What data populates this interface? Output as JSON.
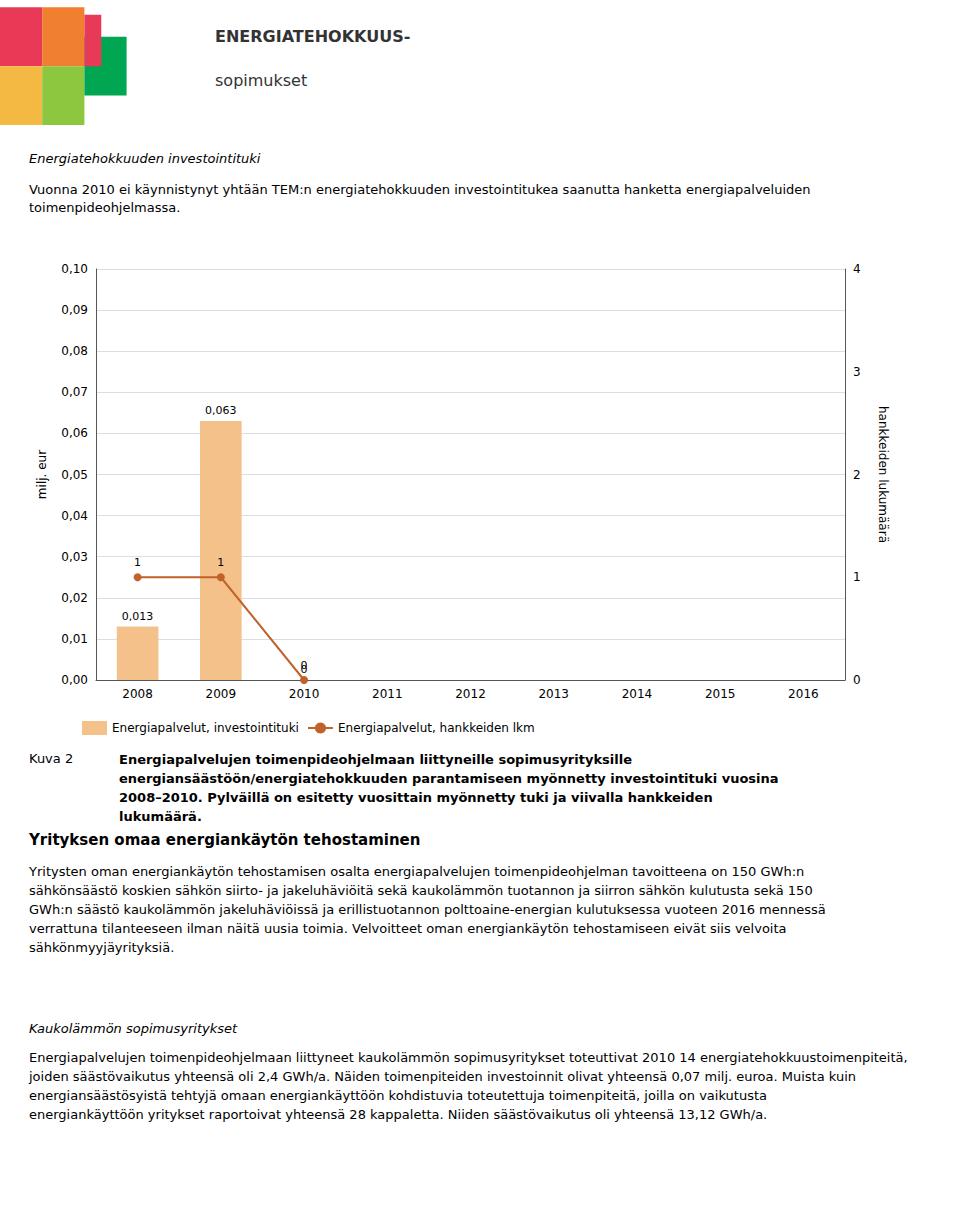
{
  "chart_data": {
    "type": "bar",
    "title": "Energiatehokkuuden investointituki",
    "subtitle": "Vuonna 2010 ei käynnistynyt yhtään TEM:n energiatehokkuuden investointitukea saanutta hanketta energiapalveluiden toimenpideohjelmassa.",
    "annotations": [
      "ENERGIATEHOKKUUS-",
      "sopimukset",
      "Kuva 2",
      "Energiapalvelujen toimenpideohjelmaan liittyneille sopimusyrityksille\nenergiansäästöön/energiatehokkuuden parantamiseen myönnetty investointituki vuosina\n2008–2010. Pylväillä on esitetty vuosittain myönnetty tuki ja viivalla hankkeiden lukumäärä.",
      "Yrityksen omaa energiankäytön tehostaminen",
      "Yritysten oman energiankäytön tehostamisen osalta energiapalvelujen toimenpideohjelman tavoitteena on 150 GWh:n sähkönsäästö koskien sähkön siirto- ja jakeluhäviöitä sekä kaukolämmön tuotannon ja siirron sähkön kulutusta sekä 150 GWh:n säästö kaukolämmön jakeluhäviöissä ja erillistuotannon polttoaine-energian kulutuksessa vuoteen 2016 mennessä verrattuna tilanteeseen ilman näitä uusia toimia. Velvoitteet oman energiankäytön tehostamiseen eivät siis velvoita sähkönmyyjäyrityksiä.",
      "Kaukolämmön sopimusyritykset",
      "Energiapalvelujen toimenpideohjelmaan liittyneet kaukolämmön sopimusyritykset toteuttivat 2010 14 energiatehokkuustoimenpiteitä, joiden säästövaikutus yhteensä oli 2,4 GWh/a. Näiden toimenpiteiden investoinnit olivat yhteensä 0,07 milj. euroa. Muista kuin energiansäästösyistä tehtyjä omaan energiankäyttöön kohdistuvia toteutettuja toimenpiteitä, joilla on vaikutusta energiankäyttöön yritykset raportoivat yhteensä 28 kappaletta. Niiden säästövaikutus oli yhteensä 13,12 GWh/a."
    ],
    "categories": [
      "2008",
      "2009",
      "2010",
      "2011",
      "2012",
      "2013",
      "2014",
      "2015",
      "2016"
    ],
    "series": [
      {
        "name": "Energiapalvelut, investointituki",
        "type": "bar",
        "color": "#F5C18A",
        "values": [
          0.013,
          0.063,
          0.0,
          0.0,
          0.0,
          0.0,
          0.0,
          0.0,
          0.0
        ],
        "data_labels": true,
        "value_labels": [
          "0,013",
          "0,063",
          "0",
          null,
          null,
          null,
          null,
          null,
          null
        ]
      },
      {
        "name": "Energiapalvelut, hankkeiden lkm",
        "type": "line",
        "color": "#C0622A",
        "marker": "circle",
        "axis": "y2",
        "data_labels": true,
        "values": [
          1,
          1,
          0,
          null,
          null,
          null,
          null,
          null,
          null
        ]
      }
    ],
    "ylabel": "milj. eur",
    "y2label": "hankkeiden lukumäärä",
    "ylim": [
      0.0,
      0.1
    ],
    "yticks": [
      {
        "value": 0.0,
        "label": "0,00"
      },
      {
        "value": 0.01,
        "label": "0,01"
      },
      {
        "value": 0.02,
        "label": "0,02"
      },
      {
        "value": 0.03,
        "label": "0,03"
      },
      {
        "value": 0.04,
        "label": "0,04"
      },
      {
        "value": 0.05,
        "label": "0,05"
      },
      {
        "value": 0.06,
        "label": "0,06"
      },
      {
        "value": 0.07,
        "label": "0,07"
      },
      {
        "value": 0.08,
        "label": "0,08"
      },
      {
        "value": 0.09,
        "label": "0,09"
      },
      {
        "value": 0.1,
        "label": "0,10"
      }
    ],
    "y2lim": [
      0,
      4
    ],
    "y2ticks": [
      0,
      1,
      2,
      3,
      4
    ],
    "grid": true,
    "legend": "bottom"
  }
}
